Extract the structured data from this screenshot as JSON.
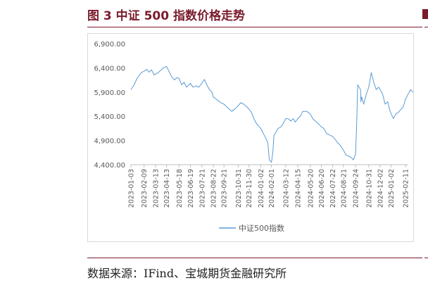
{
  "figure": {
    "title": "图 3 中证 500 指数价格走势",
    "source": "数据来源：IFind、宝城期货金融研究所"
  },
  "colors": {
    "accent": "#7a1c2c",
    "line": "#5b9bd5",
    "axis": "#bfbfbf",
    "text": "#595959"
  },
  "chart_data": {
    "type": "line",
    "title": "",
    "xlabel": "",
    "ylabel": "",
    "ylim": [
      4400,
      6900
    ],
    "yticks": [
      4400,
      4900,
      5400,
      5900,
      6400,
      6900
    ],
    "ytick_labels": [
      "4,400.00",
      "4,900.00",
      "5,400.00",
      "5,900.00",
      "6,400.00",
      "6,900.00"
    ],
    "xticks": [
      "2023-01-03",
      "2023-02-09",
      "2023-03-13",
      "2023-04-13",
      "2023-05-18",
      "2023-06-19",
      "2023-07-21",
      "2023-08-22",
      "2023-09-21",
      "2023-10-31",
      "2023-11-30",
      "2024-01-02",
      "2024-02-01",
      "2024-03-12",
      "2024-04-15",
      "2024-05-20",
      "2024-06-20",
      "2024-07-22",
      "2024-08-21",
      "2024-09-24",
      "2024-10-31",
      "2024-12-02",
      "2025-01-02",
      "2025-02-11"
    ],
    "grid": false,
    "legend_position": "bottom",
    "series": [
      {
        "name": "中证500指数",
        "x": [
          "2023-01-03",
          "2023-01-12",
          "2023-01-20",
          "2023-02-01",
          "2023-02-09",
          "2023-02-16",
          "2023-02-23",
          "2023-03-02",
          "2023-03-09",
          "2023-03-13",
          "2023-03-20",
          "2023-03-28",
          "2023-04-04",
          "2023-04-13",
          "2023-04-20",
          "2023-04-27",
          "2023-05-05",
          "2023-05-12",
          "2023-05-18",
          "2023-05-25",
          "2023-06-01",
          "2023-06-08",
          "2023-06-15",
          "2023-06-19",
          "2023-06-26",
          "2023-07-05",
          "2023-07-12",
          "2023-07-21",
          "2023-07-28",
          "2023-08-04",
          "2023-08-11",
          "2023-08-18",
          "2023-08-22",
          "2023-08-29",
          "2023-09-05",
          "2023-09-12",
          "2023-09-21",
          "2023-09-28",
          "2023-10-13",
          "2023-10-23",
          "2023-10-31",
          "2023-11-07",
          "2023-11-15",
          "2023-11-23",
          "2023-11-30",
          "2023-12-07",
          "2023-12-14",
          "2023-12-21",
          "2024-01-02",
          "2024-01-09",
          "2024-01-16",
          "2024-01-22",
          "2024-01-26",
          "2024-02-01",
          "2024-02-05",
          "2024-02-08",
          "2024-02-20",
          "2024-02-28",
          "2024-03-05",
          "2024-03-12",
          "2024-03-19",
          "2024-03-26",
          "2024-04-02",
          "2024-04-08",
          "2024-04-15",
          "2024-04-22",
          "2024-04-29",
          "2024-05-10",
          "2024-05-20",
          "2024-05-27",
          "2024-06-03",
          "2024-06-11",
          "2024-06-20",
          "2024-06-27",
          "2024-07-04",
          "2024-07-11",
          "2024-07-22",
          "2024-07-29",
          "2024-08-05",
          "2024-08-12",
          "2024-08-21",
          "2024-08-28",
          "2024-09-04",
          "2024-09-13",
          "2024-09-18",
          "2024-09-24",
          "2024-09-27",
          "2024-09-30",
          "2024-10-08",
          "2024-10-09",
          "2024-10-11",
          "2024-10-17",
          "2024-10-24",
          "2024-10-31",
          "2024-11-07",
          "2024-11-14",
          "2024-11-21",
          "2024-11-28",
          "2024-12-02",
          "2024-12-09",
          "2024-12-16",
          "2024-12-23",
          "2024-12-30",
          "2025-01-02",
          "2025-01-08",
          "2025-01-15",
          "2025-01-22",
          "2025-02-05",
          "2025-02-11",
          "2025-02-18",
          "2025-02-25",
          "2025-03-04",
          "2025-03-10"
        ],
        "values": [
          5950,
          6050,
          6180,
          6300,
          6330,
          6370,
          6310,
          6360,
          6250,
          6270,
          6300,
          6350,
          6400,
          6430,
          6320,
          6220,
          6150,
          6200,
          6180,
          6050,
          6100,
          6000,
          6050,
          6080,
          6000,
          6030,
          6000,
          6080,
          6160,
          6050,
          5950,
          5900,
          5800,
          5760,
          5720,
          5680,
          5650,
          5600,
          5500,
          5560,
          5620,
          5680,
          5650,
          5600,
          5550,
          5480,
          5350,
          5250,
          5150,
          5050,
          4950,
          4850,
          4500,
          4450,
          4650,
          5000,
          5150,
          5180,
          5250,
          5350,
          5350,
          5300,
          5350,
          5280,
          5350,
          5400,
          5500,
          5500,
          5450,
          5350,
          5300,
          5250,
          5180,
          5150,
          5050,
          5020,
          4980,
          4920,
          4850,
          4800,
          4700,
          4600,
          4580,
          4540,
          4500,
          4620,
          5200,
          6050,
          5950,
          5700,
          5800,
          5650,
          5850,
          6000,
          6300,
          6100,
          5950,
          6000,
          5950,
          5850,
          5650,
          5700,
          5500,
          5450,
          5350,
          5450,
          5480,
          5600,
          5750,
          5850,
          5950,
          5900,
          5880
        ]
      }
    ]
  }
}
